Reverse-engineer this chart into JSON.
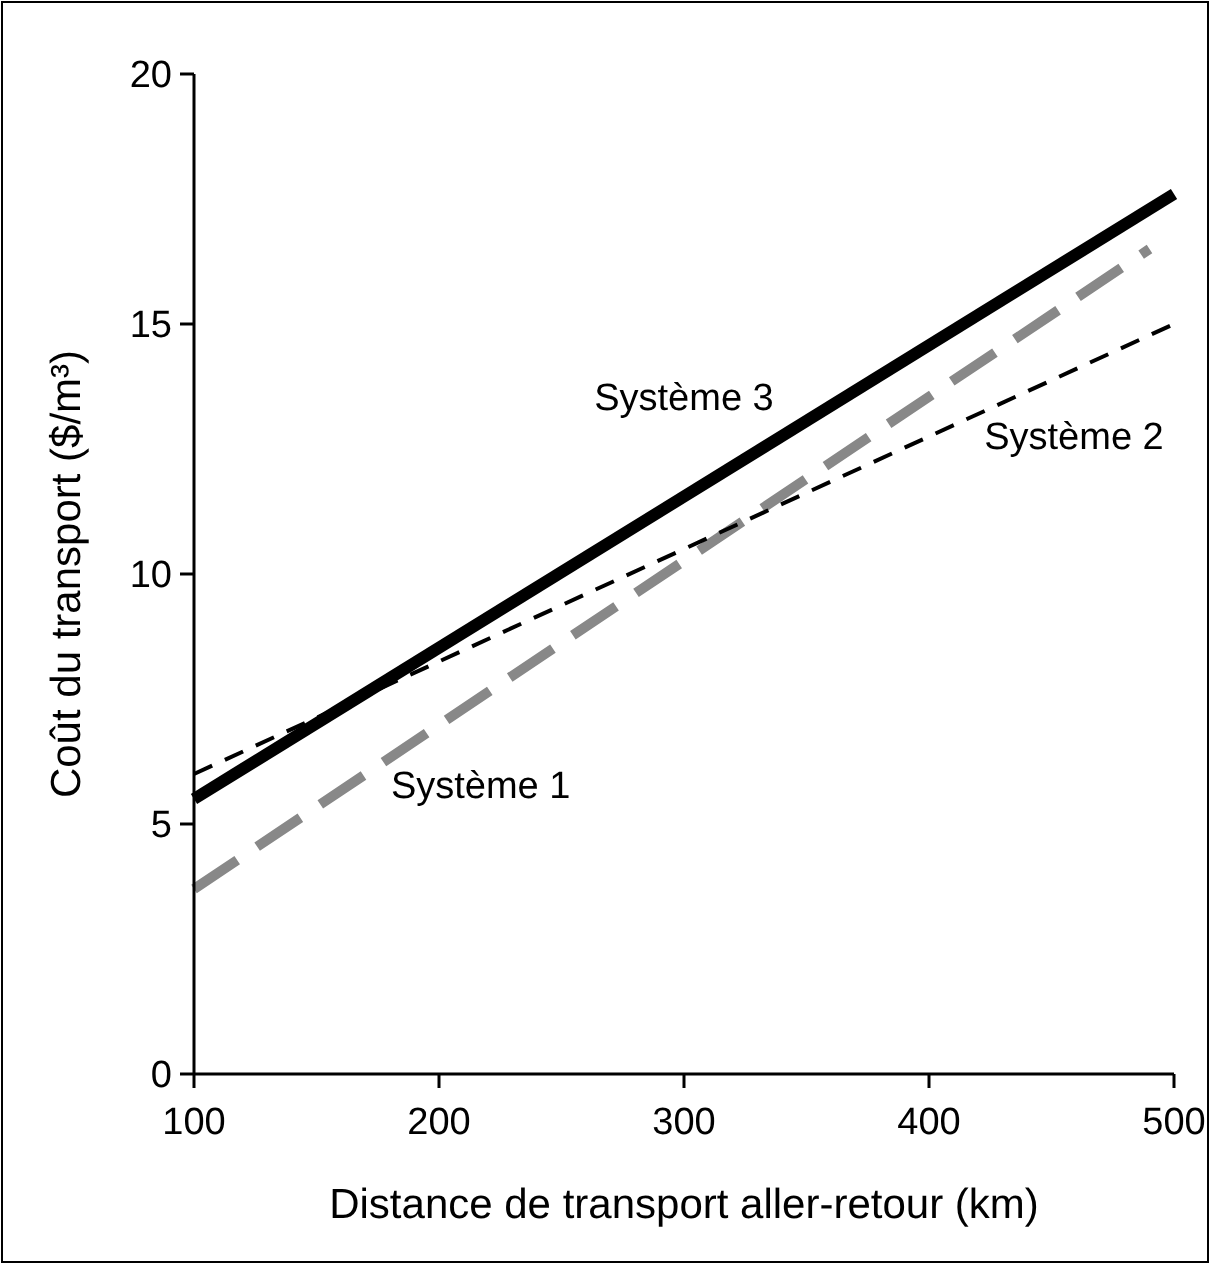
{
  "chart_data": {
    "type": "line",
    "xlabel": "Distance de transport aller-retour (km)",
    "ylabel": "Coût du transport ($/m³)",
    "xlim": [
      100,
      500
    ],
    "xticks": [
      100,
      200,
      300,
      400,
      500
    ],
    "ylim": [
      0,
      20
    ],
    "yticks": [
      0,
      5,
      10,
      15,
      20
    ],
    "grid": false,
    "marker": "none",
    "series": [
      {
        "name": "Système 1",
        "color": "#888888",
        "line_style": "dashed",
        "x": [
          100,
          490
        ],
        "values": [
          3.7,
          16.5
        ]
      },
      {
        "name": "Système 2",
        "color": "#000000",
        "line_style": "dashed",
        "x": [
          100,
          500
        ],
        "values": [
          6.0,
          15.0
        ]
      },
      {
        "name": "Système 3",
        "color": "#000000",
        "line_style": "solid",
        "x": [
          100,
          500
        ],
        "values": [
          5.5,
          17.6
        ]
      }
    ]
  }
}
